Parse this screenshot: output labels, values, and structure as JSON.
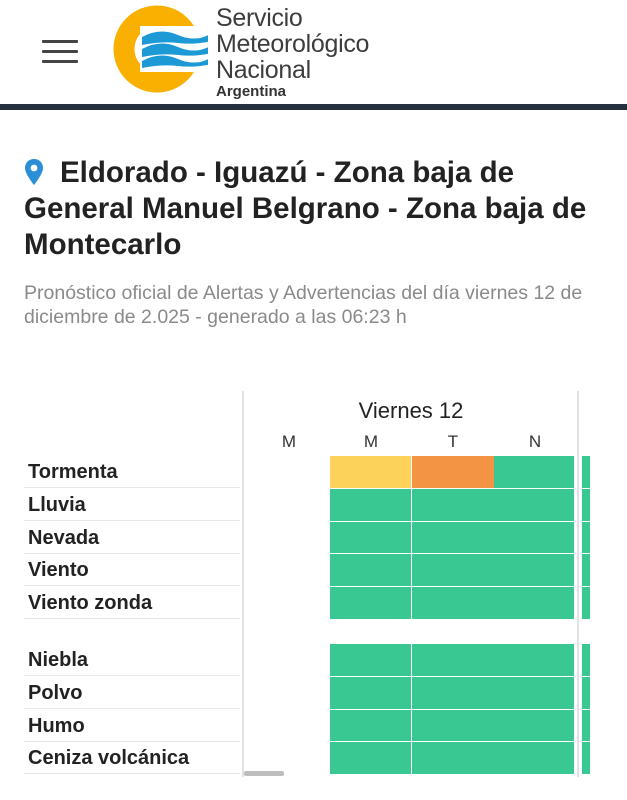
{
  "header": {
    "org_line1": "Servicio",
    "org_line2": "Meteorológico",
    "org_line3": "Nacional",
    "org_line4": "Argentina",
    "menu_icon": "hamburger-menu-icon"
  },
  "location": {
    "pin_icon": "location-pin-icon",
    "title": "Eldorado - Iguazú - Zona baja de General Manuel Belgrano - Zona baja de Montecarlo",
    "subtitle": "Pronóstico oficial de Alertas y Advertencias del día viernes 12 de diciembre de 2.025 - generado a las 06:23 h"
  },
  "grid": {
    "day": "Viernes 12",
    "periods": [
      "M",
      "M",
      "T",
      "N"
    ],
    "rows": [
      {
        "label": "Tormenta",
        "group": 1,
        "levels": [
          null,
          "amarillo",
          "naranja",
          "verde"
        ]
      },
      {
        "label": "Lluvia",
        "group": 1,
        "levels": [
          null,
          "verde",
          "verde",
          "verde"
        ]
      },
      {
        "label": "Nevada",
        "group": 1,
        "levels": [
          null,
          "verde",
          "verde",
          "verde"
        ]
      },
      {
        "label": "Viento",
        "group": 1,
        "levels": [
          null,
          "verde",
          "verde",
          "verde"
        ]
      },
      {
        "label": "Viento zonda",
        "group": 1,
        "levels": [
          null,
          "verde",
          "verde",
          "verde"
        ]
      },
      {
        "label": "Niebla",
        "group": 2,
        "levels": [
          null,
          "verde",
          "verde",
          "verde"
        ]
      },
      {
        "label": "Polvo",
        "group": 2,
        "levels": [
          null,
          "verde",
          "verde",
          "verde"
        ]
      },
      {
        "label": "Humo",
        "group": 2,
        "levels": [
          null,
          "verde",
          "verde",
          "verde"
        ]
      },
      {
        "label": "Ceniza volcánica",
        "group": 2,
        "levels": [
          null,
          "verde",
          "verde",
          "verde"
        ]
      }
    ]
  },
  "colors": {
    "verde": "#39c891",
    "amarillo": "#fdd25b",
    "naranja": "#f39444",
    "logo_yellow": "#f9b000",
    "logo_blue": "#1d9ad6",
    "header_line": "#252f3e"
  }
}
